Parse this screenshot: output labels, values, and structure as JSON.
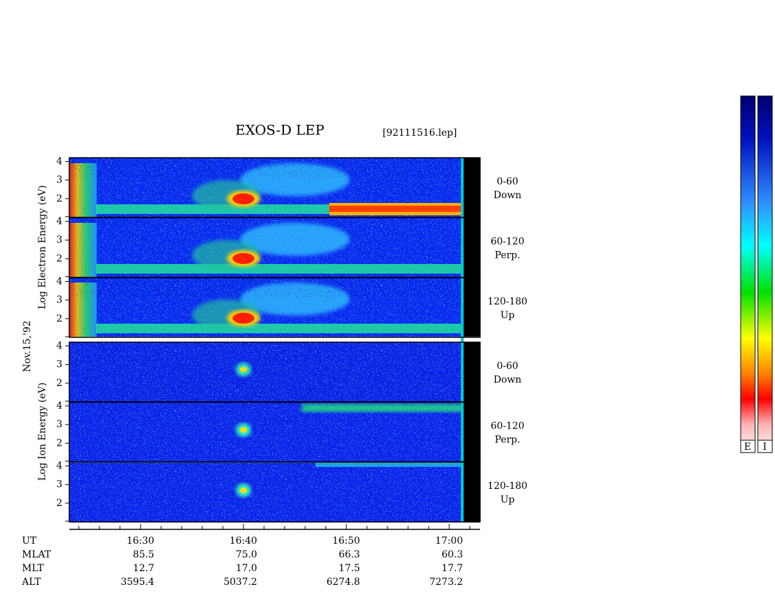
{
  "chart_data": {
    "type": "spectrogram",
    "title": "EXOS-D LEP",
    "file_label": "[92111516.lep]",
    "date_label": "Nov.15,'92",
    "groups": [
      {
        "axis_label": "Log Electron Energy (eV)",
        "colorbar_label": "E",
        "panels": [
          {
            "label": [
              "0-60",
              "Down"
            ]
          },
          {
            "label": [
              "60-120",
              "Perp."
            ]
          },
          {
            "label": [
              "120-180",
              "Up"
            ]
          }
        ]
      },
      {
        "axis_label": "Log Ion Energy (eV)",
        "colorbar_label": "I",
        "panels": [
          {
            "label": [
              "0-60",
              "Down"
            ]
          },
          {
            "label": [
              "60-120",
              "Perp."
            ]
          },
          {
            "label": [
              "120-180",
              "Up"
            ]
          }
        ]
      }
    ],
    "ylim": [
      1,
      4.2
    ],
    "yticks": [
      2,
      3,
      4
    ],
    "xlim": [
      983.07,
      1023
    ],
    "xticks": [
      {
        "value": 990,
        "label": "16:30"
      },
      {
        "value": 1000,
        "label": "16:40"
      },
      {
        "value": 1010,
        "label": "16:50"
      },
      {
        "value": 1020,
        "label": "17:00"
      }
    ],
    "xminorticks": [
      984,
      986,
      988,
      992,
      994,
      996,
      998,
      1002,
      1004,
      1006,
      1008,
      1012,
      1014,
      1016,
      1018,
      1022
    ],
    "ephemeris_label": "UT",
    "ephemeris": [
      {
        "name": "MLAT",
        "values": [
          "85.5",
          "75.0",
          "66.3",
          "60.3"
        ]
      },
      {
        "name": "MLT",
        "values": [
          "12.7",
          "17.0",
          "17.5",
          "17.7"
        ]
      },
      {
        "name": "ALT",
        "values": [
          "3595.4",
          "5037.2",
          "6274.8",
          "7273.2"
        ]
      }
    ]
  }
}
